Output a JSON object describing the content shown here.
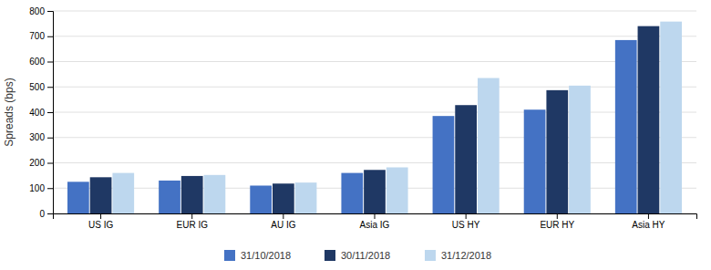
{
  "chart_data": {
    "type": "bar",
    "categories": [
      "US IG",
      "EUR IG",
      "AU IG",
      "Asia IG",
      "US HY",
      "EUR HY",
      "Asia HY"
    ],
    "series": [
      {
        "name": "31/10/2018",
        "color": "#4472C4",
        "values": [
          125,
          130,
          110,
          160,
          385,
          410,
          685
        ]
      },
      {
        "name": "30/11/2018",
        "color": "#1F3864",
        "values": [
          143,
          148,
          118,
          172,
          428,
          487,
          740
        ]
      },
      {
        "name": "31/12/2018",
        "color": "#BDD7EE",
        "values": [
          160,
          152,
          122,
          182,
          535,
          505,
          758
        ]
      }
    ],
    "ylabel": "Spreads (bps)",
    "ylim": [
      0,
      800
    ],
    "yticks": [
      0,
      100,
      200,
      300,
      400,
      500,
      600,
      700,
      800
    ],
    "grid": true,
    "legend": "bottom"
  }
}
